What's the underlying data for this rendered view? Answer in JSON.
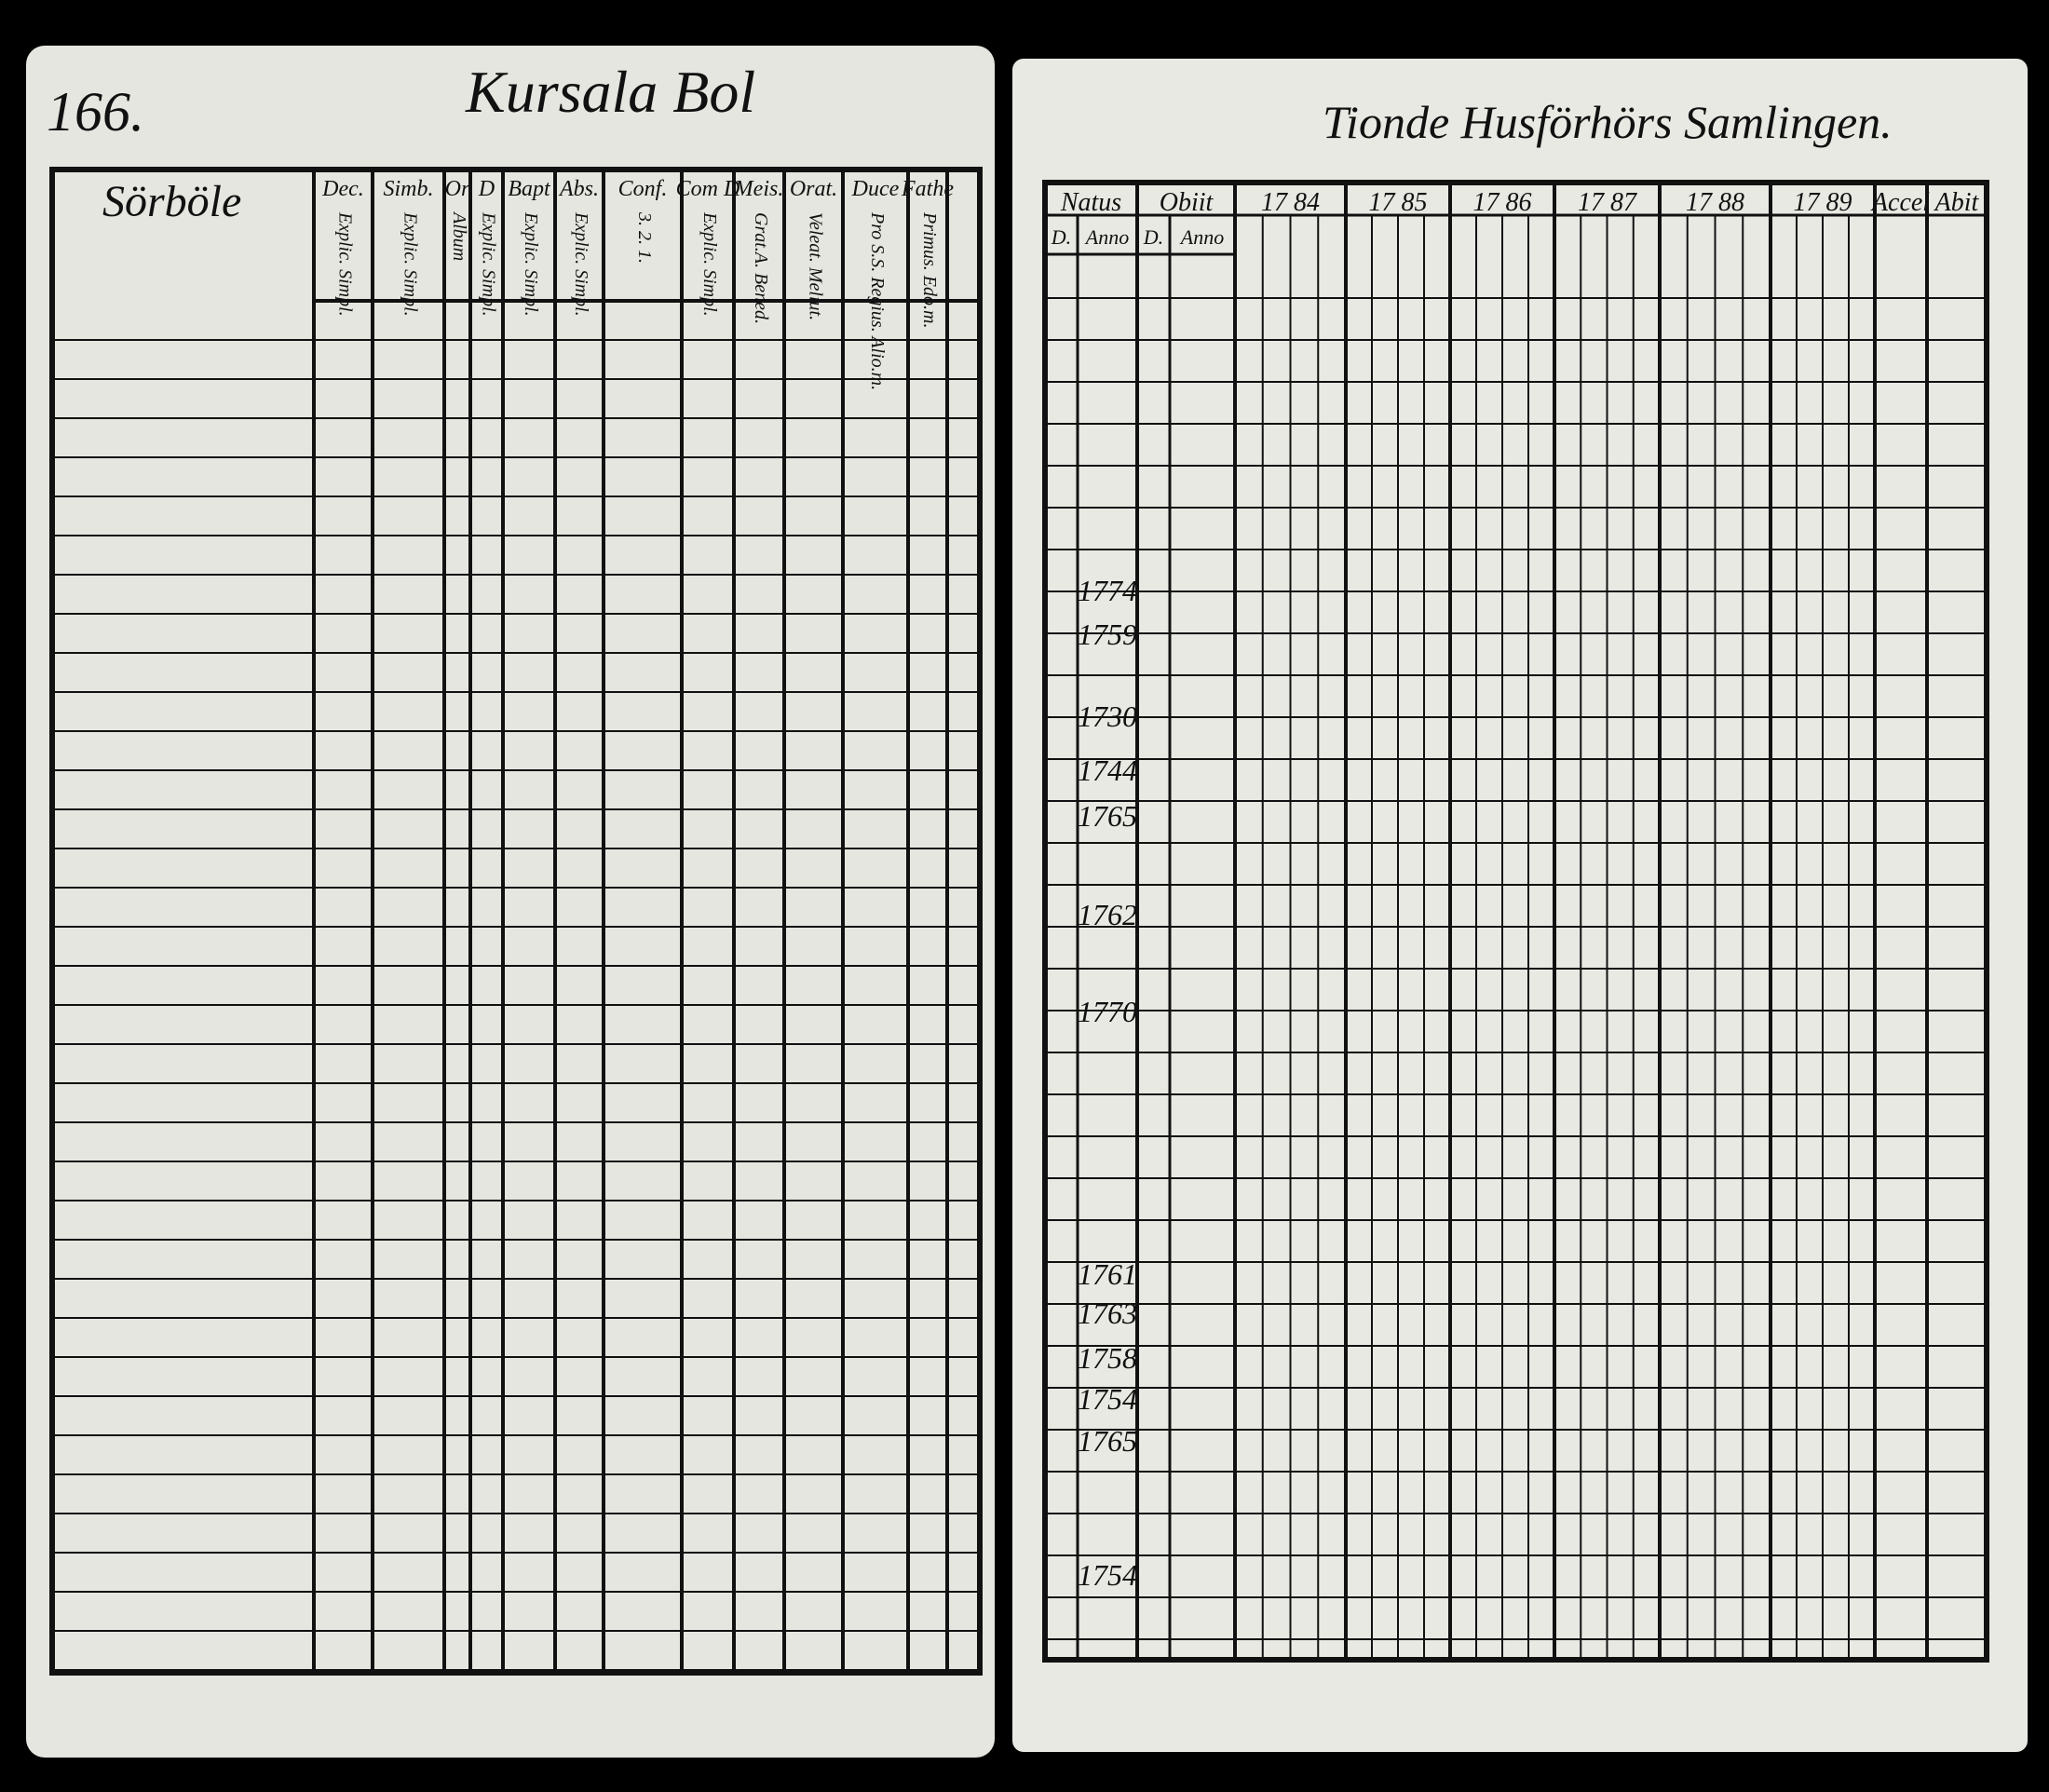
{
  "left_page": {
    "page_number": "166.",
    "title": "Kursala Bol",
    "section": "Sörböle",
    "columns": [
      {
        "header": "Dec.",
        "sub": "Explic. Simpl."
      },
      {
        "header": "Simb.",
        "sub": "Explic. Simpl."
      },
      {
        "header": "Or",
        "sub": "Album"
      },
      {
        "header": "D",
        "sub": "Explic. Simpl."
      },
      {
        "header": "Bapt",
        "sub": "Explic. Simpl."
      },
      {
        "header": "Abs.",
        "sub": "Explic. Simpl."
      },
      {
        "header": "Conf.",
        "sub": "3. 2. 1."
      },
      {
        "header": "Com D",
        "sub": "Explic. Simpl."
      },
      {
        "header": "Meis.",
        "sub": "Grat.A. Bened."
      },
      {
        "header": "Orat.",
        "sub": "Veleat. Meliut."
      },
      {
        "header": "Duce",
        "sub": "Pro S.S. Regius. Alio.m."
      },
      {
        "header": "Fathe",
        "sub": "Primus. Edo.m."
      }
    ]
  },
  "right_page": {
    "title": "Tionde Husförhörs Samlingen.",
    "headers": [
      "Natus",
      "Obiit",
      "17 84",
      "17 85",
      "17 86",
      "17 87",
      "17 88",
      "17 89",
      "Accel",
      "Abit"
    ],
    "subheaders": [
      "D.",
      "Anno",
      "D.",
      "Anno"
    ],
    "birth_years": [
      "1774",
      "1759",
      "1730",
      "1744",
      "1765",
      "1762",
      "1770",
      "1761",
      "1763",
      "1758",
      "1754",
      "1765",
      "1754"
    ]
  }
}
